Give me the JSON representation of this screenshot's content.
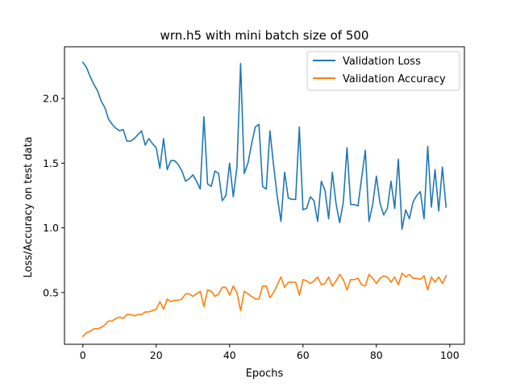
{
  "chart_data": {
    "type": "line",
    "title": "wrn.h5 with mini batch size of 500",
    "xlabel": "Epochs",
    "ylabel": "Loss/Accuracy on test data",
    "xlim": [
      -5,
      104
    ],
    "ylim": [
      0.1,
      2.4
    ],
    "xticks": [
      0,
      20,
      40,
      60,
      80,
      100
    ],
    "yticks": [
      0.5,
      1.0,
      1.5,
      2.0
    ],
    "xtick_labels": [
      "0",
      "20",
      "40",
      "60",
      "80",
      "100"
    ],
    "ytick_labels": [
      "0.5",
      "1.0",
      "1.5",
      "2.0"
    ],
    "grid": false,
    "legend_position": "top-right",
    "x": [
      0,
      1,
      2,
      3,
      4,
      5,
      6,
      7,
      8,
      9,
      10,
      11,
      12,
      13,
      14,
      15,
      16,
      17,
      18,
      19,
      20,
      21,
      22,
      23,
      24,
      25,
      26,
      27,
      28,
      29,
      30,
      31,
      32,
      33,
      34,
      35,
      36,
      37,
      38,
      39,
      40,
      41,
      42,
      43,
      44,
      45,
      46,
      47,
      48,
      49,
      50,
      51,
      52,
      53,
      54,
      55,
      56,
      57,
      58,
      59,
      60,
      61,
      62,
      63,
      64,
      65,
      66,
      67,
      68,
      69,
      70,
      71,
      72,
      73,
      74,
      75,
      76,
      77,
      78,
      79,
      80,
      81,
      82,
      83,
      84,
      85,
      86,
      87,
      88,
      89,
      90,
      91,
      92,
      93,
      94,
      95,
      96,
      97,
      98,
      99
    ],
    "series": [
      {
        "name": "Validation Loss",
        "color": "#1f77b4",
        "values": [
          2.28,
          2.24,
          2.17,
          2.11,
          2.06,
          1.98,
          1.93,
          1.84,
          1.8,
          1.77,
          1.75,
          1.76,
          1.67,
          1.67,
          1.69,
          1.72,
          1.75,
          1.64,
          1.69,
          1.65,
          1.62,
          1.46,
          1.69,
          1.45,
          1.52,
          1.52,
          1.49,
          1.44,
          1.36,
          1.38,
          1.41,
          1.36,
          1.3,
          1.86,
          1.34,
          1.32,
          1.44,
          1.42,
          1.21,
          1.25,
          1.5,
          1.24,
          1.47,
          2.27,
          1.42,
          1.5,
          1.65,
          1.78,
          1.8,
          1.32,
          1.3,
          1.75,
          1.48,
          1.24,
          1.05,
          1.43,
          1.23,
          1.22,
          1.22,
          1.78,
          1.14,
          1.15,
          1.24,
          1.21,
          1.05,
          1.36,
          1.29,
          1.07,
          1.43,
          1.19,
          1.04,
          1.2,
          1.62,
          1.18,
          1.18,
          1.17,
          1.39,
          1.6,
          1.05,
          1.18,
          1.4,
          1.19,
          1.1,
          1.15,
          1.36,
          1.15,
          1.53,
          0.99,
          1.14,
          1.07,
          1.2,
          1.25,
          1.28,
          1.07,
          1.63,
          1.16,
          1.45,
          1.13,
          1.47,
          1.16
        ]
      },
      {
        "name": "Validation Accuracy",
        "color": "#ff7f0e",
        "values": [
          0.16,
          0.19,
          0.2,
          0.22,
          0.22,
          0.23,
          0.25,
          0.28,
          0.28,
          0.3,
          0.31,
          0.3,
          0.33,
          0.33,
          0.32,
          0.33,
          0.33,
          0.35,
          0.35,
          0.36,
          0.37,
          0.43,
          0.37,
          0.45,
          0.43,
          0.44,
          0.44,
          0.45,
          0.49,
          0.49,
          0.47,
          0.49,
          0.51,
          0.39,
          0.52,
          0.51,
          0.47,
          0.49,
          0.54,
          0.54,
          0.48,
          0.55,
          0.5,
          0.36,
          0.51,
          0.49,
          0.47,
          0.45,
          0.45,
          0.55,
          0.55,
          0.46,
          0.5,
          0.56,
          0.62,
          0.54,
          0.58,
          0.58,
          0.58,
          0.48,
          0.6,
          0.59,
          0.57,
          0.59,
          0.62,
          0.56,
          0.57,
          0.62,
          0.55,
          0.59,
          0.64,
          0.6,
          0.52,
          0.6,
          0.6,
          0.61,
          0.56,
          0.55,
          0.64,
          0.61,
          0.57,
          0.61,
          0.63,
          0.62,
          0.58,
          0.62,
          0.56,
          0.65,
          0.62,
          0.64,
          0.61,
          0.61,
          0.6,
          0.63,
          0.52,
          0.62,
          0.58,
          0.62,
          0.57,
          0.63
        ]
      }
    ]
  }
}
